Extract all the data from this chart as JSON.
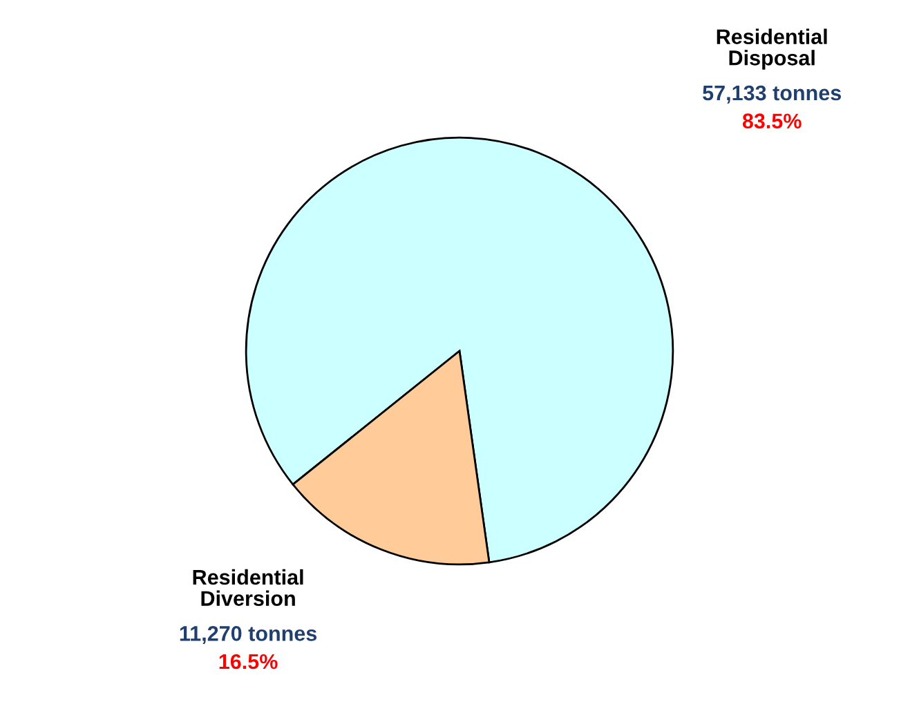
{
  "chart_data": {
    "type": "pie",
    "categories": [
      "Residential Disposal",
      "Residential Diversion"
    ],
    "values": [
      57133,
      11270
    ],
    "colors": [
      "#ccffff",
      "#ffcc99"
    ],
    "value_labels": [
      "57,133 tonnes",
      "11,270 tonnes"
    ],
    "annotations": [
      "83.5%",
      "16.5%"
    ]
  }
}
